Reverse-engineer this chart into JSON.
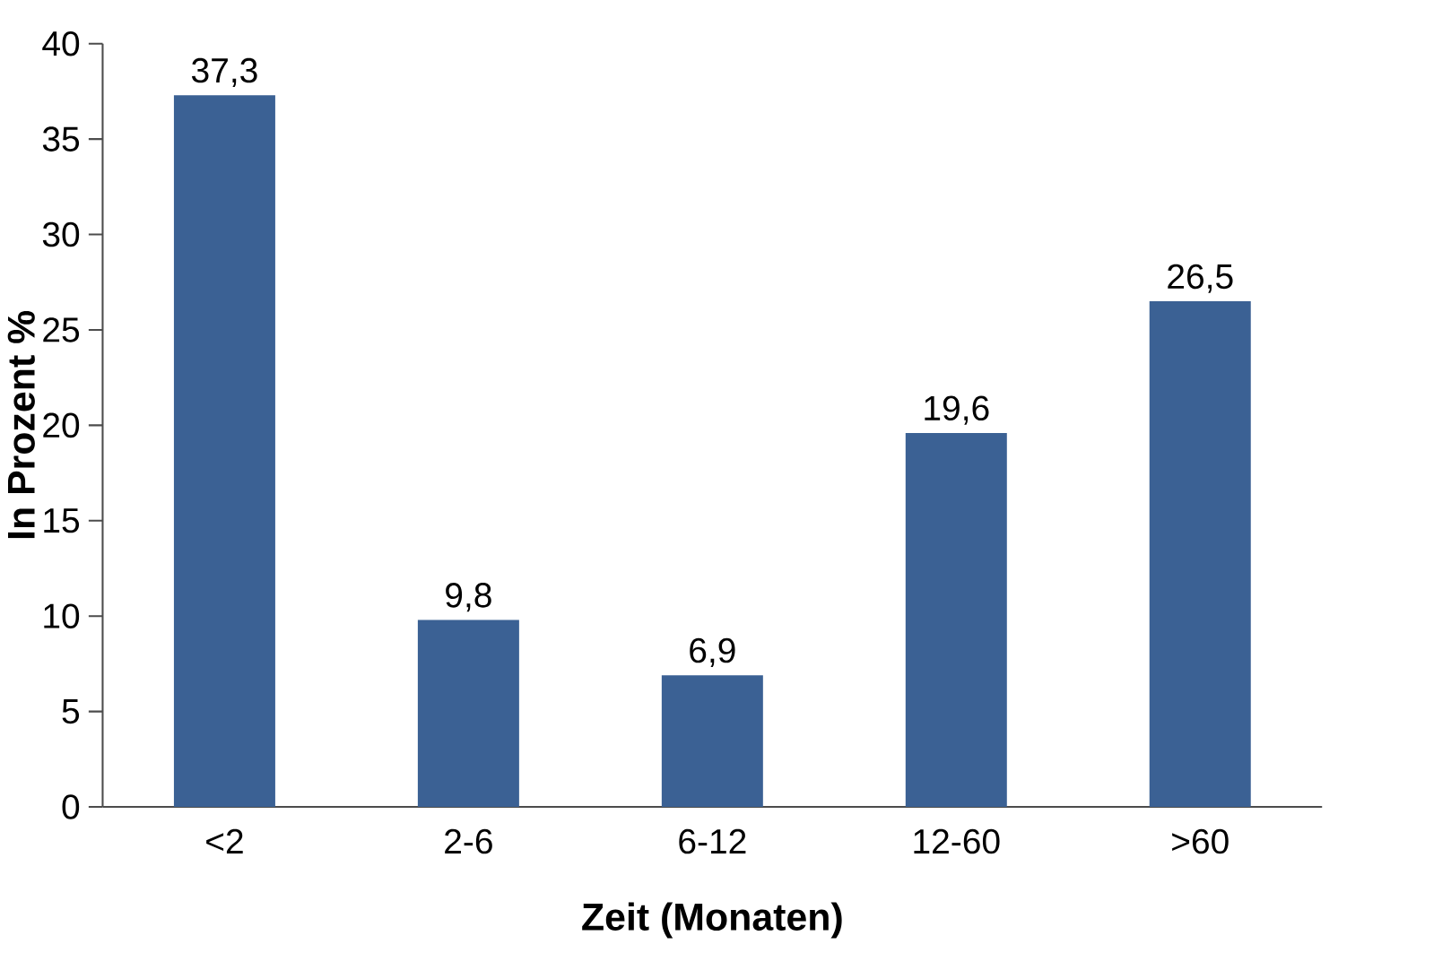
{
  "chart_data": {
    "type": "bar",
    "xlabel": "Zeit (Monaten)",
    "ylabel": "In Prozent %",
    "categories": [
      "<2",
      "2-6",
      "6-12",
      "12-60",
      ">60"
    ],
    "values": [
      37.3,
      9.8,
      6.9,
      19.6,
      26.5
    ],
    "value_labels": [
      "37,3",
      "9,8",
      "6,9",
      "19,6",
      "26,5"
    ],
    "color": "#3b6194",
    "ylim": [
      0,
      40
    ],
    "yticks": [
      0,
      5,
      10,
      15,
      20,
      25,
      30,
      35,
      40
    ],
    "grid": false
  }
}
